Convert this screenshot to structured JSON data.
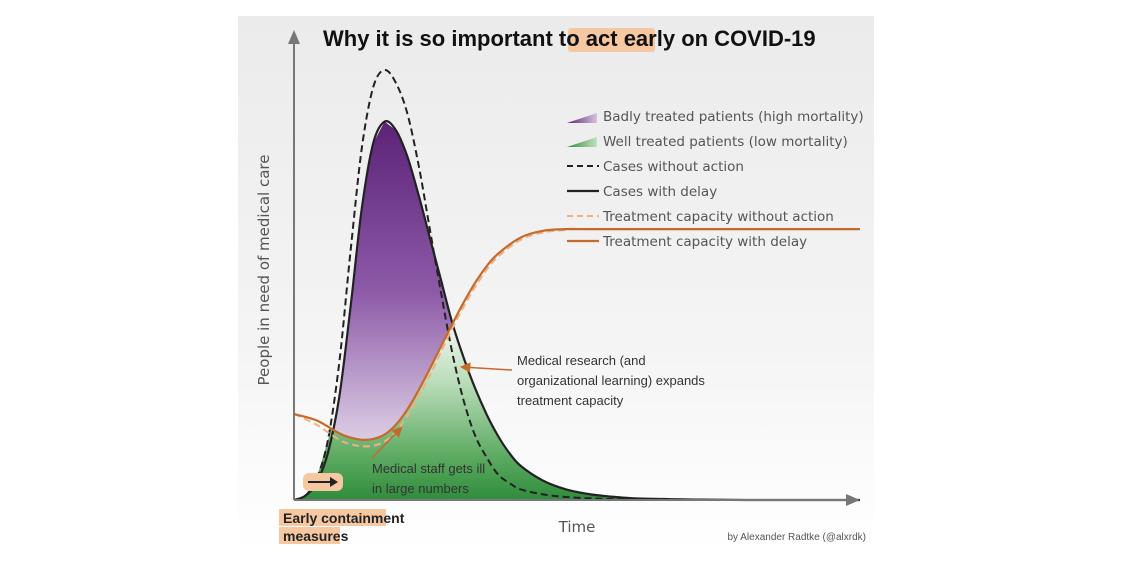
{
  "chart_data": {
    "type": "line",
    "title_parts": [
      "Why it is so important to ",
      "act early",
      " on COVID-19"
    ],
    "xlabel": "Time",
    "ylabel": "People in need of medical care",
    "xlim": [
      0,
      100
    ],
    "ylim": [
      0,
      100
    ],
    "series": [
      {
        "name": "Badly treated patients (high mortality)",
        "style": "area-gradient",
        "color": "#6b2d86"
      },
      {
        "name": "Well treated patients (low mortality)",
        "style": "area-gradient",
        "color": "#3a9a4a"
      },
      {
        "name": "Cases without action",
        "style": "dashed",
        "color": "#222222",
        "x": [
          0,
          2,
          4,
          6,
          8,
          10,
          12,
          14,
          16,
          18,
          20,
          22,
          24,
          26,
          28,
          30,
          32,
          34,
          36,
          38,
          40,
          44,
          48,
          52,
          56,
          62,
          70,
          80,
          90,
          100
        ],
        "y": [
          0,
          1,
          5,
          14,
          32,
          58,
          82,
          96,
          100,
          97,
          90,
          78,
          63,
          48,
          34,
          23,
          15,
          10,
          6,
          4,
          2.5,
          1.3,
          0.7,
          0.4,
          0.2,
          0.1,
          0,
          0,
          0,
          0
        ]
      },
      {
        "name": "Cases with delay",
        "style": "solid",
        "color": "#222222",
        "x": [
          0,
          2,
          4,
          6,
          8,
          10,
          12,
          14,
          16,
          18,
          20,
          22,
          24,
          26,
          28,
          30,
          32,
          34,
          36,
          38,
          40,
          44,
          48,
          52,
          56,
          60,
          66,
          72,
          80,
          90,
          100
        ],
        "y": [
          0,
          1,
          4,
          11,
          24,
          45,
          68,
          83,
          88,
          86,
          80,
          71,
          61,
          51,
          41,
          33,
          26,
          20,
          15,
          11,
          8,
          4.5,
          2.5,
          1.4,
          0.8,
          0.4,
          0.2,
          0.1,
          0,
          0,
          0
        ]
      },
      {
        "name": "Treatment capacity without action",
        "style": "dashed",
        "color": "#f0b080",
        "x": [
          0,
          4,
          8,
          10,
          12,
          14,
          16,
          18,
          20,
          22,
          24,
          26,
          28,
          30,
          32,
          34,
          36,
          40,
          44,
          48,
          50,
          52,
          56,
          60,
          70,
          80,
          90,
          100
        ],
        "y": [
          20,
          17.5,
          14,
          13,
          12.5,
          12.6,
          13.6,
          15.8,
          19.5,
          24,
          29,
          34.5,
          40,
          45,
          49.5,
          53.5,
          56.5,
          60.5,
          62.2,
          62.8,
          63,
          63,
          63,
          63,
          63,
          63,
          63,
          63
        ]
      },
      {
        "name": "Treatment capacity with delay",
        "style": "solid",
        "color": "#c46a2a",
        "x": [
          0,
          4,
          8,
          10,
          12,
          14,
          16,
          18,
          20,
          22,
          24,
          26,
          28,
          30,
          32,
          34,
          36,
          40,
          44,
          48,
          50,
          52,
          56,
          60,
          70,
          80,
          90,
          100
        ],
        "y": [
          20,
          18.5,
          15.5,
          14.5,
          14,
          14.2,
          15.2,
          17.5,
          21,
          25.5,
          30.5,
          35.8,
          41,
          46,
          50.5,
          54.3,
          57.2,
          61,
          62.6,
          63,
          63,
          63,
          63,
          63,
          63,
          63,
          63,
          63
        ]
      }
    ],
    "legend": "top-right",
    "annotations": [
      {
        "lines": [
          "Medical research (and",
          "organizational learning) expands",
          "treatment capacity"
        ]
      },
      {
        "lines": [
          "Medical staff gets ill",
          "in large numbers"
        ]
      },
      {
        "lines": [
          "Early containment",
          "measures"
        ]
      }
    ],
    "credit": "by Alexander Radtke (@alxrdk)",
    "colors": {
      "highlight": "#f5c8a2",
      "purple": "#6b2d86",
      "green": "#3a9a4a",
      "capacity": "#c46a2a",
      "capacity_light": "#f0b080"
    }
  }
}
